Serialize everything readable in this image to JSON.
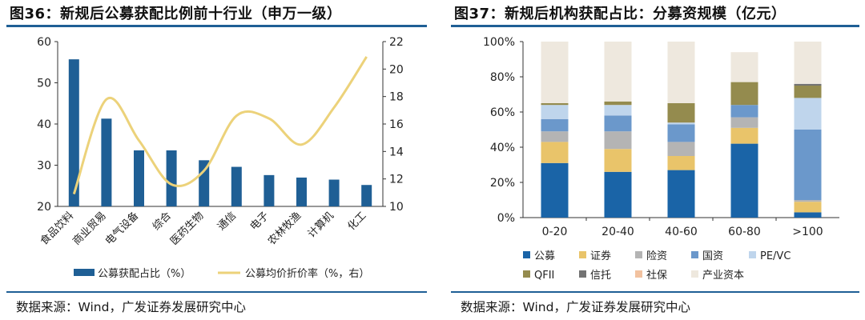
{
  "left": {
    "title": "图36：新规后公募获配比例前十行业（申万一级）",
    "source": "数据来源：Wind，广发证券发展研究中心"
  },
  "right": {
    "title": "图37：新规后机构获配占比：分募资规模（亿元）",
    "source": "数据来源：Wind，广发证券发展研究中心"
  },
  "colors": {
    "rule": "#1f5f95",
    "bar": "#1f5f95",
    "line": "#ecd27a"
  },
  "chart_data": [
    {
      "type": "bar",
      "categories": [
        "食品饮料",
        "商业贸易",
        "电气设备",
        "综合",
        "医药生物",
        "通信",
        "电子",
        "农林牧渔",
        "计算机",
        "化工"
      ],
      "series": [
        {
          "name": "公募获配占比（%）",
          "type": "bar",
          "axis": "left",
          "values": [
            55.7,
            41.3,
            33.6,
            33.6,
            31.2,
            29.6,
            27.6,
            27.0,
            26.5,
            25.2
          ]
        },
        {
          "name": "公募均价折价率（%，右）",
          "type": "line",
          "axis": "right",
          "smooth": true,
          "values": [
            10.9,
            17.8,
            14.8,
            11.6,
            12.6,
            16.6,
            16.4,
            14.5,
            17.2,
            20.9
          ]
        }
      ],
      "ylim": [
        20,
        60
      ],
      "yticks": [
        20,
        30,
        40,
        50,
        60
      ],
      "y2lim": [
        10,
        22
      ],
      "y2ticks": [
        10,
        12,
        14,
        16,
        18,
        20,
        22
      ],
      "legend": "bottom"
    },
    {
      "type": "bar",
      "stacked": true,
      "categories": [
        "0-20",
        "20-40",
        "40-60",
        "60-80",
        ">100"
      ],
      "series": [
        {
          "name": "公募",
          "color": "#1a64a7",
          "values": [
            31,
            26,
            27,
            42,
            3
          ]
        },
        {
          "name": "证券",
          "color": "#e9c46a",
          "values": [
            12,
            13,
            8,
            9,
            6
          ]
        },
        {
          "name": "险资",
          "color": "#b4b4b4",
          "values": [
            6,
            10,
            8,
            6,
            1
          ]
        },
        {
          "name": "国资",
          "color": "#6b98cb",
          "values": [
            7,
            9,
            10,
            7,
            40
          ]
        },
        {
          "name": "PE/VC",
          "color": "#bfd5ec",
          "values": [
            8,
            6,
            1,
            0,
            18
          ]
        },
        {
          "name": "QFII",
          "color": "#948b4e",
          "values": [
            1,
            2,
            11,
            13,
            7
          ]
        },
        {
          "name": "信托",
          "color": "#737373",
          "values": [
            0,
            0,
            0,
            0,
            1
          ]
        },
        {
          "name": "社保",
          "color": "#f2c2a0",
          "values": [
            0,
            0,
            0,
            0,
            0
          ]
        },
        {
          "name": "产业资本",
          "color": "#eee8de",
          "values": [
            35,
            34,
            35,
            17,
            24
          ]
        }
      ],
      "ylim": [
        0,
        100
      ],
      "yticks": [
        "0%",
        "20%",
        "40%",
        "60%",
        "80%",
        "100%"
      ],
      "legend": "bottom"
    }
  ]
}
